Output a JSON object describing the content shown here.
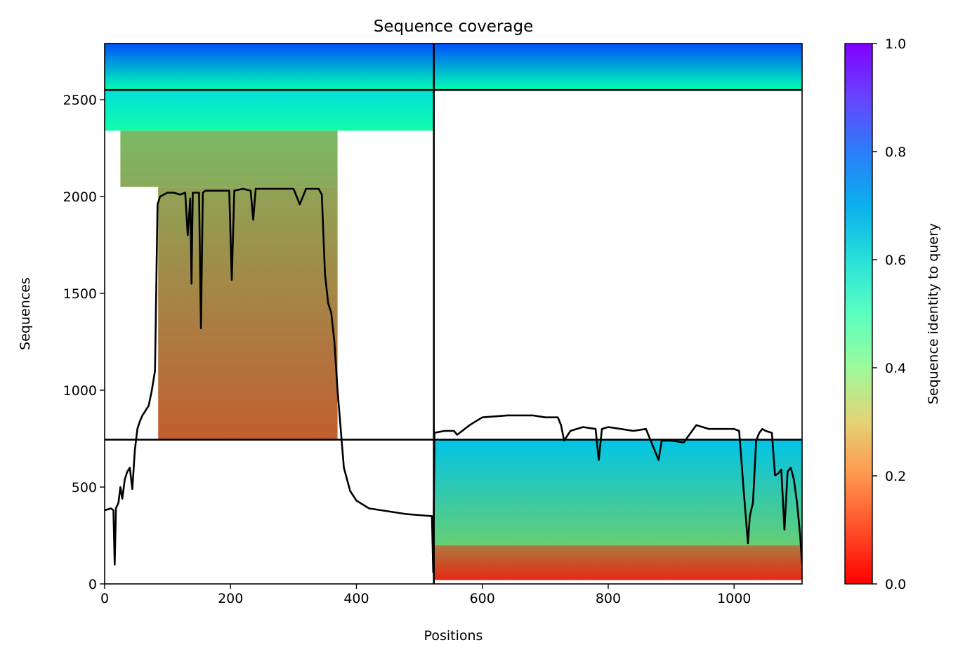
{
  "chart_data": {
    "type": "heatmap",
    "title": "Sequence coverage",
    "xlabel": "Positions",
    "ylabel": "Sequences",
    "xlim": [
      0,
      1108
    ],
    "ylim": [
      0,
      2790
    ],
    "xticks": [
      0,
      200,
      400,
      600,
      800,
      1000
    ],
    "yticks": [
      0,
      500,
      1000,
      1500,
      2000,
      2500
    ],
    "colorbar": {
      "label": "Sequence identity to query",
      "range": [
        0,
        1
      ],
      "ticks": [
        "0.0",
        "0.2",
        "0.4",
        "0.6",
        "0.8",
        "1.0"
      ],
      "colormap": "rainbow_r"
    },
    "segment_boundaries": {
      "positions": [
        523
      ],
      "sequences": [
        745,
        2550
      ]
    },
    "blocks": [
      {
        "x0": 0,
        "x1": 523,
        "y0": 2550,
        "y1": 2790,
        "identity_top": 0.9,
        "identity_bottom": 0.5
      },
      {
        "x0": 0,
        "x1": 523,
        "y0": 2340,
        "y1": 2550,
        "identity_top": 0.66,
        "identity_bottom": 0.46
      },
      {
        "x0": 25,
        "x1": 370,
        "y0": 2050,
        "y1": 2340,
        "identity_top": 0.26,
        "identity_bottom": 0.23
      },
      {
        "x0": 85,
        "x1": 370,
        "y0": 745,
        "y1": 2050,
        "identity_top": 0.22,
        "identity_bottom": 0.12
      },
      {
        "x0": 523,
        "x1": 1108,
        "y0": 2550,
        "y1": 2790,
        "identity_top": 0.9,
        "identity_bottom": 0.5
      },
      {
        "x0": 523,
        "x1": 1108,
        "y0": 200,
        "y1": 745,
        "identity_top": 0.72,
        "identity_bottom": 0.3
      },
      {
        "x0": 523,
        "x1": 1108,
        "y0": 20,
        "y1": 200,
        "identity_top": 0.16,
        "identity_bottom": 0.05
      }
    ],
    "coverage_line": {
      "x": [
        0,
        10,
        14,
        16,
        18,
        22,
        25,
        28,
        32,
        36,
        40,
        44,
        48,
        52,
        56,
        60,
        70,
        75,
        80,
        84,
        88,
        100,
        110,
        120,
        128,
        132,
        136,
        138,
        140,
        145,
        150,
        153,
        156,
        160,
        180,
        198,
        202,
        206,
        220,
        232,
        236,
        240,
        260,
        280,
        300,
        310,
        320,
        330,
        340,
        345,
        350,
        355,
        360,
        365,
        370,
        380,
        390,
        400,
        420,
        440,
        460,
        480,
        500,
        520,
        522,
        524,
        540,
        555,
        560,
        580,
        600,
        640,
        680,
        700,
        720,
        725,
        730,
        740,
        760,
        780,
        785,
        790,
        800,
        820,
        840,
        860,
        870,
        880,
        885,
        900,
        920,
        940,
        960,
        980,
        1000,
        1008,
        1015,
        1022,
        1025,
        1030,
        1035,
        1040,
        1045,
        1050,
        1060,
        1065,
        1070,
        1075,
        1080,
        1085,
        1090,
        1095,
        1100,
        1105,
        1108
      ],
      "y": [
        380,
        390,
        380,
        100,
        390,
        420,
        500,
        440,
        540,
        580,
        600,
        490,
        690,
        800,
        840,
        870,
        920,
        1000,
        1100,
        1960,
        2000,
        2020,
        2020,
        2010,
        2020,
        1800,
        1990,
        1550,
        2020,
        2020,
        2020,
        1320,
        2020,
        2030,
        2030,
        2030,
        1570,
        2030,
        2040,
        2030,
        1880,
        2040,
        2040,
        2040,
        2040,
        1960,
        2040,
        2040,
        2040,
        2010,
        1600,
        1450,
        1400,
        1250,
        1000,
        600,
        480,
        430,
        390,
        380,
        370,
        360,
        355,
        350,
        60,
        780,
        790,
        790,
        770,
        820,
        860,
        870,
        870,
        860,
        860,
        820,
        740,
        790,
        810,
        800,
        640,
        800,
        810,
        800,
        790,
        800,
        720,
        640,
        740,
        740,
        730,
        820,
        800,
        800,
        800,
        790,
        490,
        210,
        350,
        420,
        740,
        780,
        800,
        790,
        780,
        560,
        570,
        590,
        280,
        580,
        600,
        540,
        420,
        250,
        100
      ]
    }
  }
}
